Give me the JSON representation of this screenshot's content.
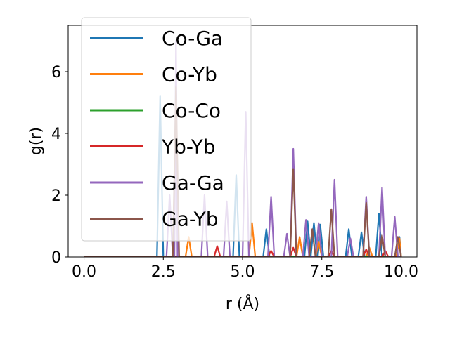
{
  "chart_data": {
    "type": "line",
    "title": "",
    "xlabel": "r (Å)",
    "ylabel": "g(r)",
    "xlim": [
      -0.5,
      10.5
    ],
    "ylim": [
      0,
      7.5
    ],
    "xticks": [
      0.0,
      2.5,
      5.0,
      7.5,
      10.0
    ],
    "xtick_labels": [
      "0.0",
      "2.5",
      "5.0",
      "7.5",
      "10.0"
    ],
    "yticks": [
      0,
      2,
      4,
      6
    ],
    "ytick_labels": [
      "0",
      "2",
      "4",
      "6"
    ],
    "legend_position": "upper-left",
    "series": [
      {
        "name": "Co-Ga",
        "color": "#1f77b4",
        "x": [
          0,
          2.3,
          2.4,
          2.5,
          4.7,
          4.8,
          4.9,
          5.65,
          5.75,
          5.85,
          6.95,
          7.05,
          7.15,
          7.25,
          7.35,
          7.45,
          7.55,
          7.65,
          8.25,
          8.35,
          8.45,
          8.65,
          8.75,
          8.85,
          9.2,
          9.3,
          9.4,
          9.85,
          9.95,
          10.0
        ],
        "values": [
          0,
          0,
          5.2,
          0,
          0,
          2.65,
          0,
          0,
          0.9,
          0,
          0,
          1.15,
          0,
          1.1,
          0,
          1.05,
          0,
          0,
          0,
          0.9,
          0,
          0,
          0.8,
          0,
          0,
          1.4,
          0,
          0,
          0.65,
          0
        ]
      },
      {
        "name": "Co-Yb",
        "color": "#ff7f0e",
        "x": [
          0,
          3.2,
          3.3,
          3.4,
          5.2,
          5.3,
          5.4,
          6.7,
          6.8,
          6.9,
          7.3,
          7.4,
          7.5,
          8.9,
          9.0,
          9.1,
          9.85,
          9.95,
          10.0
        ],
        "values": [
          0,
          0,
          0.65,
          0,
          0,
          1.1,
          0,
          0,
          0.65,
          0,
          0,
          0.5,
          0,
          0,
          0.3,
          0,
          0,
          0.6,
          0
        ]
      },
      {
        "name": "Co-Co",
        "color": "#2ca02c",
        "x": [
          0,
          10.0
        ],
        "values": [
          0,
          0
        ]
      },
      {
        "name": "Yb-Yb",
        "color": "#d62728",
        "x": [
          0,
          4.1,
          4.2,
          4.3,
          5.8,
          5.9,
          6.0,
          6.5,
          6.6,
          6.7,
          7.7,
          7.8,
          7.9,
          8.8,
          8.9,
          9.0,
          9.4,
          9.5,
          9.6,
          10.0
        ],
        "values": [
          0,
          0,
          0.35,
          0,
          0,
          0.2,
          0,
          0,
          0.3,
          0,
          0,
          0.2,
          0,
          0,
          0.25,
          0,
          0,
          0.2,
          0,
          0
        ]
      },
      {
        "name": "Ga-Ga",
        "color": "#9467bd",
        "x": [
          0,
          2.6,
          2.7,
          2.8,
          2.85,
          2.9,
          2.95,
          3.7,
          3.8,
          3.9,
          4.4,
          4.5,
          4.6,
          5.0,
          5.1,
          5.2,
          5.8,
          5.9,
          6.0,
          6.3,
          6.4,
          6.5,
          6.6,
          6.7,
          6.9,
          7.0,
          7.1,
          7.3,
          7.4,
          7.5,
          7.8,
          7.9,
          8.0,
          8.3,
          8.4,
          8.5,
          8.8,
          8.9,
          9.0,
          9.3,
          9.4,
          9.5,
          9.7,
          9.8,
          9.9,
          10.0
        ],
        "values": [
          0,
          0,
          2.0,
          0,
          0,
          7.0,
          0,
          0,
          2.0,
          0,
          0,
          1.8,
          0,
          0,
          4.7,
          0,
          0,
          1.95,
          0,
          0,
          0.75,
          0,
          3.5,
          0,
          0,
          1.2,
          0,
          0,
          1.1,
          0,
          0,
          2.5,
          0,
          0,
          0.6,
          0,
          0,
          1.95,
          0,
          0,
          2.25,
          0,
          0,
          1.3,
          0,
          0
        ]
      },
      {
        "name": "Ga-Yb",
        "color": "#8c564b",
        "x": [
          0,
          2.8,
          2.9,
          3.0,
          6.5,
          6.6,
          6.7,
          7.1,
          7.2,
          7.3,
          7.7,
          7.8,
          7.9,
          8.8,
          8.9,
          9.0,
          9.3,
          9.4,
          9.5,
          9.8,
          9.9,
          10.0
        ],
        "values": [
          0,
          0,
          5.5,
          0,
          0,
          2.85,
          0,
          0,
          0.9,
          0,
          0,
          1.55,
          0,
          0,
          1.75,
          0,
          0,
          0.7,
          0,
          0,
          0.65,
          0
        ]
      }
    ]
  }
}
